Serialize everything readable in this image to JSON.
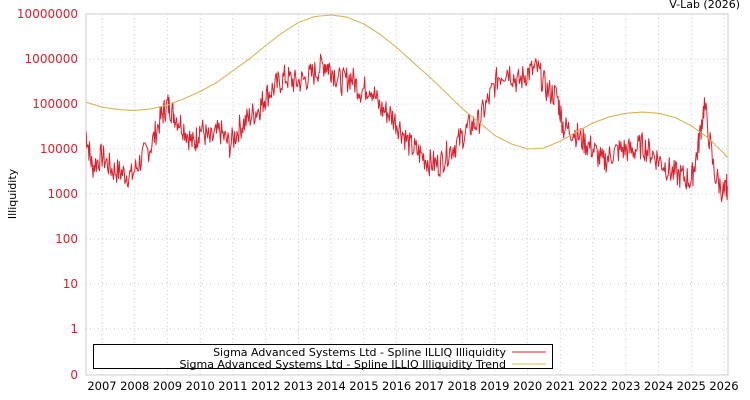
{
  "credit": "V-Lab (2026)",
  "chart_data": {
    "type": "line",
    "title": "",
    "xlabel": "",
    "ylabel": "Illiquidity",
    "yscale": "log",
    "ylim": [
      0,
      10000000
    ],
    "y_ticks": [
      "10000000",
      "1000000",
      "100000",
      "10000",
      "1000",
      "100",
      "10",
      "1",
      "0"
    ],
    "x_ticks": [
      "2007",
      "2008",
      "2009",
      "2010",
      "2011",
      "2012",
      "2013",
      "2014",
      "2015",
      "2016",
      "2017",
      "2018",
      "2019",
      "2020",
      "2021",
      "2022",
      "2023",
      "2024",
      "2025",
      "2026"
    ],
    "grid": true,
    "legend_position": "bottom-inside",
    "series": [
      {
        "name": "Sigma Advanced Systems Ltd - Spline ILLIQ Illiquidity",
        "color": "#d9222e",
        "x": [
          2006.5,
          2006.7,
          2007.0,
          2007.3,
          2007.6,
          2007.9,
          2008.2,
          2008.5,
          2008.8,
          2009.0,
          2009.2,
          2009.5,
          2009.8,
          2010.0,
          2010.3,
          2010.6,
          2010.9,
          2011.2,
          2011.5,
          2011.8,
          2012.0,
          2012.3,
          2012.6,
          2012.9,
          2013.2,
          2013.5,
          2013.8,
          2014.0,
          2014.3,
          2014.6,
          2014.9,
          2015.2,
          2015.5,
          2015.8,
          2016.1,
          2016.4,
          2016.7,
          2017.0,
          2017.3,
          2017.6,
          2017.9,
          2018.2,
          2018.5,
          2018.8,
          2019.1,
          2019.4,
          2019.7,
          2020.0,
          2020.3,
          2020.6,
          2020.9,
          2021.1,
          2021.4,
          2021.7,
          2022.0,
          2022.3,
          2022.6,
          2022.9,
          2023.2,
          2023.5,
          2023.8,
          2024.1,
          2024.4,
          2024.7,
          2025.0,
          2025.2,
          2025.4,
          2025.7,
          2026.0,
          2026.1
        ],
        "values": [
          25000,
          4000,
          7000,
          3500,
          3000,
          2500,
          6000,
          12000,
          50000,
          100000,
          60000,
          30000,
          12000,
          30000,
          15000,
          25000,
          12000,
          30000,
          50000,
          80000,
          150000,
          250000,
          400000,
          300000,
          350000,
          500000,
          800000,
          600000,
          300000,
          400000,
          200000,
          250000,
          80000,
          60000,
          30000,
          12000,
          8000,
          5000,
          4500,
          9000,
          15000,
          30000,
          40000,
          120000,
          400000,
          600000,
          300000,
          500000,
          600000,
          200000,
          150000,
          30000,
          25000,
          15000,
          10000,
          5000,
          8000,
          10000,
          9000,
          12000,
          8000,
          5000,
          3000,
          2500,
          2000,
          10000,
          100000,
          3000,
          1000,
          1500
        ]
      },
      {
        "name": "Sigma Advanced Systems Ltd - Spline ILLIQ Illiquidity Trend",
        "color": "#d6b45a",
        "x": [
          2006.5,
          2007.0,
          2007.5,
          2008.0,
          2008.5,
          2009.0,
          2009.5,
          2010.0,
          2010.5,
          2011.0,
          2011.5,
          2012.0,
          2012.5,
          2013.0,
          2013.5,
          2014.0,
          2014.5,
          2015.0,
          2015.5,
          2016.0,
          2016.5,
          2017.0,
          2017.5,
          2018.0,
          2018.5,
          2019.0,
          2019.5,
          2020.0,
          2020.5,
          2021.0,
          2021.5,
          2022.0,
          2022.5,
          2023.0,
          2023.5,
          2024.0,
          2024.5,
          2025.0,
          2025.5,
          2026.0,
          2026.1
        ],
        "values": [
          110000,
          85000,
          75000,
          72000,
          78000,
          95000,
          130000,
          190000,
          300000,
          550000,
          1000000,
          2000000,
          3800000,
          6500000,
          8800000,
          9500000,
          8500000,
          6000000,
          3500000,
          1800000,
          850000,
          400000,
          180000,
          80000,
          40000,
          20000,
          13000,
          10000,
          10500,
          15000,
          24000,
          38000,
          52000,
          62000,
          66000,
          62000,
          50000,
          33000,
          18000,
          8000,
          6500
        ]
      }
    ]
  }
}
